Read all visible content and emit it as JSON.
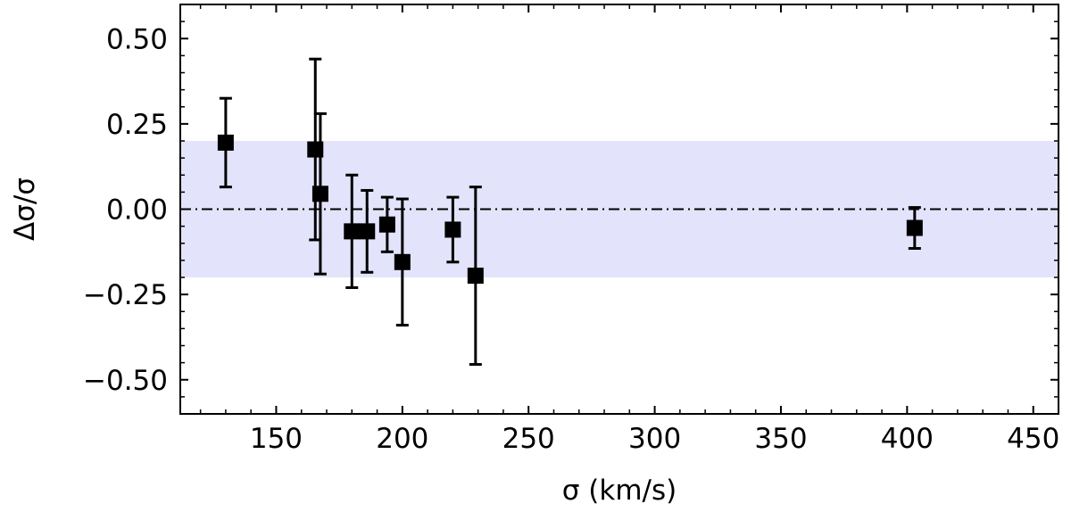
{
  "chart_data": {
    "type": "scatter",
    "title": "",
    "xlabel": "σ (km/s)",
    "ylabel": "Δσ/σ",
    "xlim": [
      112,
      460
    ],
    "ylim": [
      -0.6,
      0.6
    ],
    "x_ticks": [
      150,
      200,
      250,
      300,
      350,
      400,
      450
    ],
    "x_tick_labels": [
      "150",
      "200",
      "250",
      "300",
      "350",
      "400",
      "450"
    ],
    "x_minor_step": 10,
    "y_ticks": [
      0.5,
      0.25,
      0.0,
      -0.25,
      -0.5
    ],
    "y_tick_labels": [
      "0.50",
      "0.25",
      "0.00",
      "−0.25",
      "−0.50"
    ],
    "y_minor_step": 0.05,
    "grid": false,
    "band": {
      "y_low": -0.2,
      "y_high": 0.2,
      "color": "#e3e3fb"
    },
    "reference_line": {
      "y": 0.0,
      "style": "dash-dot",
      "color": "#000000"
    },
    "marker": {
      "shape": "square",
      "color": "#000000"
    },
    "points": [
      {
        "x": 130,
        "y": 0.195,
        "err_low": 0.13,
        "err_high": 0.13
      },
      {
        "x": 165.5,
        "y": 0.175,
        "err_low": 0.265,
        "err_high": 0.265
      },
      {
        "x": 167.5,
        "y": 0.045,
        "err_low": 0.235,
        "err_high": 0.235
      },
      {
        "x": 180,
        "y": -0.065,
        "err_low": 0.165,
        "err_high": 0.165
      },
      {
        "x": 186,
        "y": -0.065,
        "err_low": 0.12,
        "err_high": 0.12
      },
      {
        "x": 194,
        "y": -0.045,
        "err_low": 0.08,
        "err_high": 0.08
      },
      {
        "x": 200,
        "y": -0.155,
        "err_low": 0.185,
        "err_high": 0.185
      },
      {
        "x": 220,
        "y": -0.06,
        "err_low": 0.095,
        "err_high": 0.095
      },
      {
        "x": 229,
        "y": -0.195,
        "err_low": 0.26,
        "err_high": 0.26
      },
      {
        "x": 403,
        "y": -0.055,
        "err_low": 0.06,
        "err_high": 0.06
      }
    ]
  }
}
